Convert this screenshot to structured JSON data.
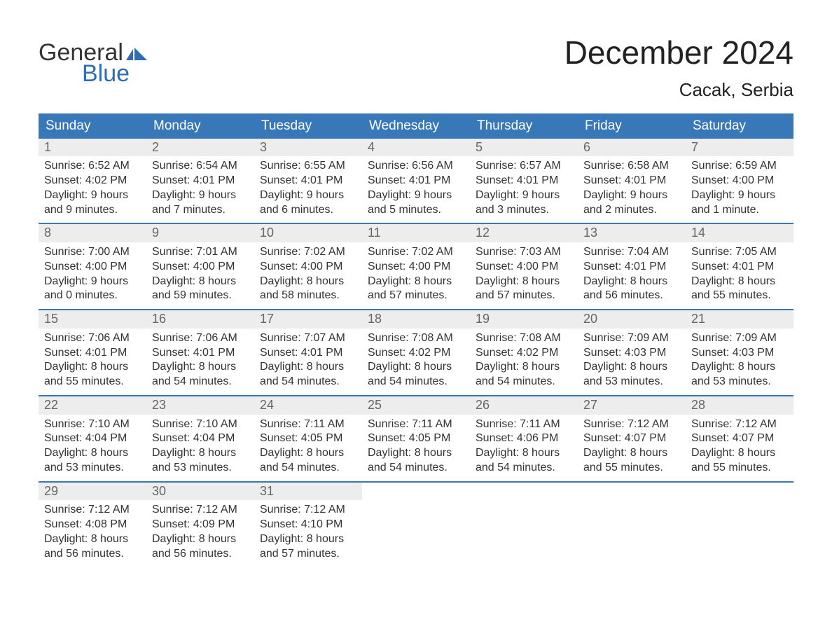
{
  "brand": {
    "logo_text_top": "General",
    "logo_text_bottom": "Blue",
    "logo_color_top": "#333333",
    "logo_color_bottom": "#2f6eb0",
    "flag_color": "#2f6eb0"
  },
  "title": {
    "month_year": "December 2024",
    "location": "Cacak, Serbia"
  },
  "colors": {
    "header_bg": "#3878b8",
    "header_text": "#ffffff",
    "week_border": "#3878b8",
    "daynum_bg": "#ededed",
    "daynum_text": "#666666",
    "body_text": "#333333",
    "page_bg": "#ffffff"
  },
  "day_headers": [
    "Sunday",
    "Monday",
    "Tuesday",
    "Wednesday",
    "Thursday",
    "Friday",
    "Saturday"
  ],
  "weeks": [
    [
      {
        "num": "1",
        "sunrise": "Sunrise: 6:52 AM",
        "sunset": "Sunset: 4:02 PM",
        "daylight1": "Daylight: 9 hours",
        "daylight2": "and 9 minutes."
      },
      {
        "num": "2",
        "sunrise": "Sunrise: 6:54 AM",
        "sunset": "Sunset: 4:01 PM",
        "daylight1": "Daylight: 9 hours",
        "daylight2": "and 7 minutes."
      },
      {
        "num": "3",
        "sunrise": "Sunrise: 6:55 AM",
        "sunset": "Sunset: 4:01 PM",
        "daylight1": "Daylight: 9 hours",
        "daylight2": "and 6 minutes."
      },
      {
        "num": "4",
        "sunrise": "Sunrise: 6:56 AM",
        "sunset": "Sunset: 4:01 PM",
        "daylight1": "Daylight: 9 hours",
        "daylight2": "and 5 minutes."
      },
      {
        "num": "5",
        "sunrise": "Sunrise: 6:57 AM",
        "sunset": "Sunset: 4:01 PM",
        "daylight1": "Daylight: 9 hours",
        "daylight2": "and 3 minutes."
      },
      {
        "num": "6",
        "sunrise": "Sunrise: 6:58 AM",
        "sunset": "Sunset: 4:01 PM",
        "daylight1": "Daylight: 9 hours",
        "daylight2": "and 2 minutes."
      },
      {
        "num": "7",
        "sunrise": "Sunrise: 6:59 AM",
        "sunset": "Sunset: 4:00 PM",
        "daylight1": "Daylight: 9 hours",
        "daylight2": "and 1 minute."
      }
    ],
    [
      {
        "num": "8",
        "sunrise": "Sunrise: 7:00 AM",
        "sunset": "Sunset: 4:00 PM",
        "daylight1": "Daylight: 9 hours",
        "daylight2": "and 0 minutes."
      },
      {
        "num": "9",
        "sunrise": "Sunrise: 7:01 AM",
        "sunset": "Sunset: 4:00 PM",
        "daylight1": "Daylight: 8 hours",
        "daylight2": "and 59 minutes."
      },
      {
        "num": "10",
        "sunrise": "Sunrise: 7:02 AM",
        "sunset": "Sunset: 4:00 PM",
        "daylight1": "Daylight: 8 hours",
        "daylight2": "and 58 minutes."
      },
      {
        "num": "11",
        "sunrise": "Sunrise: 7:02 AM",
        "sunset": "Sunset: 4:00 PM",
        "daylight1": "Daylight: 8 hours",
        "daylight2": "and 57 minutes."
      },
      {
        "num": "12",
        "sunrise": "Sunrise: 7:03 AM",
        "sunset": "Sunset: 4:00 PM",
        "daylight1": "Daylight: 8 hours",
        "daylight2": "and 57 minutes."
      },
      {
        "num": "13",
        "sunrise": "Sunrise: 7:04 AM",
        "sunset": "Sunset: 4:01 PM",
        "daylight1": "Daylight: 8 hours",
        "daylight2": "and 56 minutes."
      },
      {
        "num": "14",
        "sunrise": "Sunrise: 7:05 AM",
        "sunset": "Sunset: 4:01 PM",
        "daylight1": "Daylight: 8 hours",
        "daylight2": "and 55 minutes."
      }
    ],
    [
      {
        "num": "15",
        "sunrise": "Sunrise: 7:06 AM",
        "sunset": "Sunset: 4:01 PM",
        "daylight1": "Daylight: 8 hours",
        "daylight2": "and 55 minutes."
      },
      {
        "num": "16",
        "sunrise": "Sunrise: 7:06 AM",
        "sunset": "Sunset: 4:01 PM",
        "daylight1": "Daylight: 8 hours",
        "daylight2": "and 54 minutes."
      },
      {
        "num": "17",
        "sunrise": "Sunrise: 7:07 AM",
        "sunset": "Sunset: 4:01 PM",
        "daylight1": "Daylight: 8 hours",
        "daylight2": "and 54 minutes."
      },
      {
        "num": "18",
        "sunrise": "Sunrise: 7:08 AM",
        "sunset": "Sunset: 4:02 PM",
        "daylight1": "Daylight: 8 hours",
        "daylight2": "and 54 minutes."
      },
      {
        "num": "19",
        "sunrise": "Sunrise: 7:08 AM",
        "sunset": "Sunset: 4:02 PM",
        "daylight1": "Daylight: 8 hours",
        "daylight2": "and 54 minutes."
      },
      {
        "num": "20",
        "sunrise": "Sunrise: 7:09 AM",
        "sunset": "Sunset: 4:03 PM",
        "daylight1": "Daylight: 8 hours",
        "daylight2": "and 53 minutes."
      },
      {
        "num": "21",
        "sunrise": "Sunrise: 7:09 AM",
        "sunset": "Sunset: 4:03 PM",
        "daylight1": "Daylight: 8 hours",
        "daylight2": "and 53 minutes."
      }
    ],
    [
      {
        "num": "22",
        "sunrise": "Sunrise: 7:10 AM",
        "sunset": "Sunset: 4:04 PM",
        "daylight1": "Daylight: 8 hours",
        "daylight2": "and 53 minutes."
      },
      {
        "num": "23",
        "sunrise": "Sunrise: 7:10 AM",
        "sunset": "Sunset: 4:04 PM",
        "daylight1": "Daylight: 8 hours",
        "daylight2": "and 53 minutes."
      },
      {
        "num": "24",
        "sunrise": "Sunrise: 7:11 AM",
        "sunset": "Sunset: 4:05 PM",
        "daylight1": "Daylight: 8 hours",
        "daylight2": "and 54 minutes."
      },
      {
        "num": "25",
        "sunrise": "Sunrise: 7:11 AM",
        "sunset": "Sunset: 4:05 PM",
        "daylight1": "Daylight: 8 hours",
        "daylight2": "and 54 minutes."
      },
      {
        "num": "26",
        "sunrise": "Sunrise: 7:11 AM",
        "sunset": "Sunset: 4:06 PM",
        "daylight1": "Daylight: 8 hours",
        "daylight2": "and 54 minutes."
      },
      {
        "num": "27",
        "sunrise": "Sunrise: 7:12 AM",
        "sunset": "Sunset: 4:07 PM",
        "daylight1": "Daylight: 8 hours",
        "daylight2": "and 55 minutes."
      },
      {
        "num": "28",
        "sunrise": "Sunrise: 7:12 AM",
        "sunset": "Sunset: 4:07 PM",
        "daylight1": "Daylight: 8 hours",
        "daylight2": "and 55 minutes."
      }
    ],
    [
      {
        "num": "29",
        "sunrise": "Sunrise: 7:12 AM",
        "sunset": "Sunset: 4:08 PM",
        "daylight1": "Daylight: 8 hours",
        "daylight2": "and 56 minutes."
      },
      {
        "num": "30",
        "sunrise": "Sunrise: 7:12 AM",
        "sunset": "Sunset: 4:09 PM",
        "daylight1": "Daylight: 8 hours",
        "daylight2": "and 56 minutes."
      },
      {
        "num": "31",
        "sunrise": "Sunrise: 7:12 AM",
        "sunset": "Sunset: 4:10 PM",
        "daylight1": "Daylight: 8 hours",
        "daylight2": "and 57 minutes."
      },
      {
        "empty": true
      },
      {
        "empty": true
      },
      {
        "empty": true
      },
      {
        "empty": true
      }
    ]
  ]
}
